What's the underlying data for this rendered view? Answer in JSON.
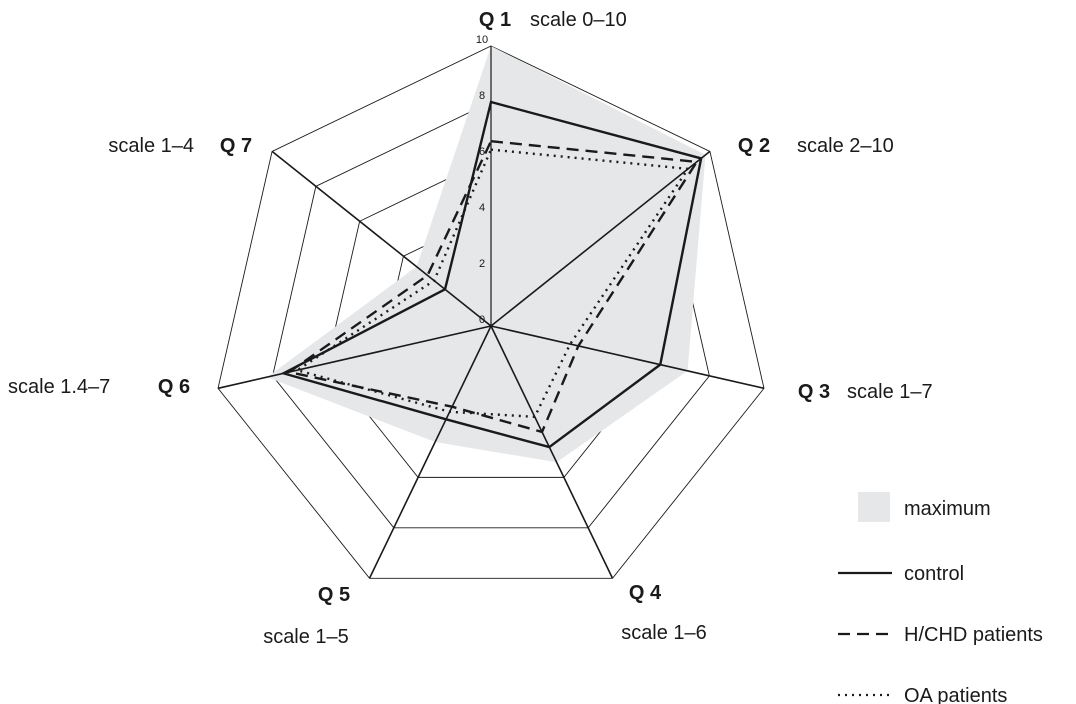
{
  "chart_data": {
    "type": "radar",
    "axes": [
      {
        "id": "Q 1",
        "scale": "scale 0–10"
      },
      {
        "id": "Q 2",
        "scale": "scale 2–10"
      },
      {
        "id": "Q 3",
        "scale": "scale 1–7"
      },
      {
        "id": "Q 4",
        "scale": "scale 1–6"
      },
      {
        "id": "Q 5",
        "scale": "scale 1–5"
      },
      {
        "id": "Q 6",
        "scale": "scale 1.4–7"
      },
      {
        "id": "Q 7",
        "scale": "scale 1–4"
      }
    ],
    "radial_range": [
      0,
      10
    ],
    "radial_ticks": [
      "0",
      "2",
      "4",
      "6",
      "8",
      "10"
    ],
    "series": [
      {
        "name": "maximum",
        "style": "fill",
        "color": "#e6e7e9",
        "values": [
          10,
          9.8,
          7.2,
          5.4,
          4.6,
          8.2,
          3.4
        ]
      },
      {
        "name": "control",
        "style": "solid",
        "color": "#1a1a1a",
        "values": [
          8.0,
          9.6,
          6.2,
          4.8,
          3.7,
          7.6,
          2.1
        ]
      },
      {
        "name": "H/CHD patients",
        "style": "dashed",
        "color": "#1a1a1a",
        "values": [
          6.6,
          9.4,
          3.2,
          4.2,
          3.2,
          7.4,
          2.9
        ]
      },
      {
        "name": "OA patients",
        "style": "dotted",
        "color": "#1a1a1a",
        "values": [
          6.3,
          9.0,
          2.9,
          3.6,
          3.4,
          7.1,
          2.6
        ]
      }
    ],
    "legend_position": "bottom-right"
  }
}
